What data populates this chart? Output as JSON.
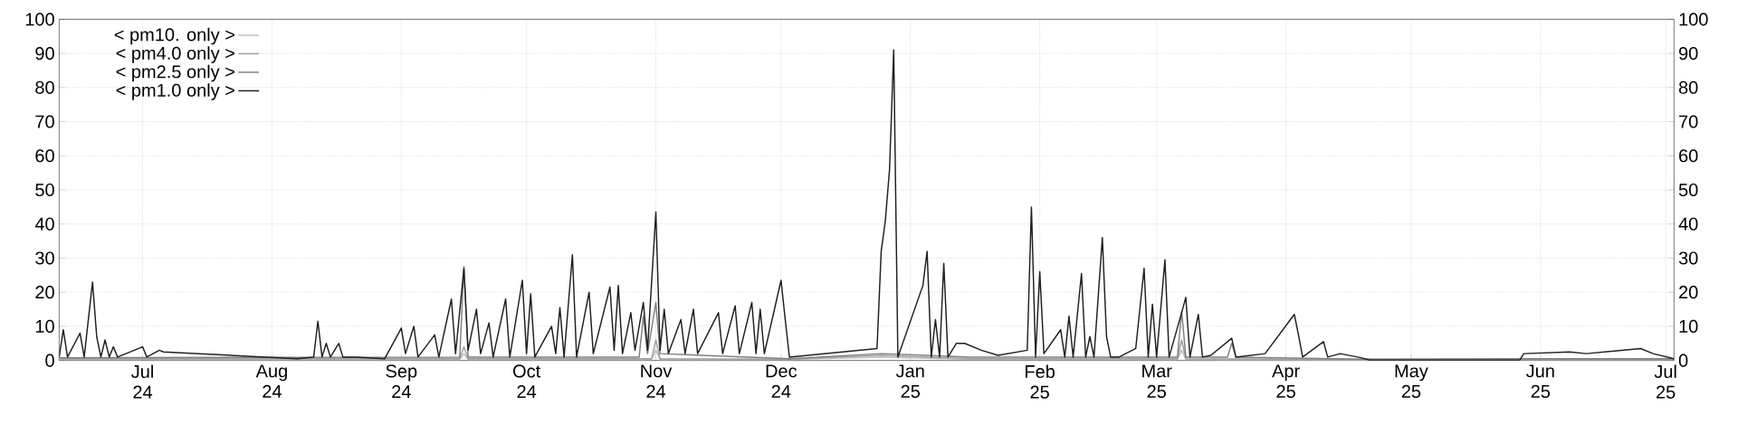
{
  "chart_data": {
    "type": "line",
    "xlim": [
      "2024-06-11",
      "2025-07-03"
    ],
    "xticks": [
      {
        "value": "2024-07-01",
        "label": "Jul 24"
      },
      {
        "value": "2024-08-01",
        "label": "Aug 24"
      },
      {
        "value": "2024-09-01",
        "label": "Sep 24"
      },
      {
        "value": "2024-10-01",
        "label": "Oct 24"
      },
      {
        "value": "2024-11-01",
        "label": "Nov 24"
      },
      {
        "value": "2024-12-01",
        "label": "Dec 24"
      },
      {
        "value": "2025-01-01",
        "label": "Jan 25"
      },
      {
        "value": "2025-02-01",
        "label": "Feb 25"
      },
      {
        "value": "2025-03-01",
        "label": "Mar 25"
      },
      {
        "value": "2025-04-01",
        "label": "Apr 25"
      },
      {
        "value": "2025-05-01",
        "label": "May 25"
      },
      {
        "value": "2025-06-01",
        "label": "Jun 25"
      },
      {
        "value": "2025-07-01",
        "label": "Jul 25"
      }
    ],
    "ylim": [
      0,
      100
    ],
    "yticks": [
      0,
      10,
      20,
      30,
      40,
      50,
      60,
      70,
      80,
      90,
      100
    ],
    "y2lim": [
      0,
      100
    ],
    "y2ticks": [
      0,
      10,
      20,
      30,
      40,
      50,
      60,
      70,
      80,
      90,
      100
    ],
    "grid": true,
    "legend": "top left",
    "series": [
      {
        "name": "< pm10. only >",
        "color": "#c0c0c0",
        "x": [
          "2024-06-11",
          "2024-09-15",
          "2024-09-16",
          "2024-09-17",
          "2024-10-31",
          "2024-11-01",
          "2024-11-02",
          "2024-12-03",
          "2024-12-25",
          "2025-01-15",
          "2025-03-06",
          "2025-03-07",
          "2025-03-08",
          "2025-04-19",
          "2025-05-28",
          "2025-07-03"
        ],
        "values": [
          0.3,
          0.3,
          2,
          0.3,
          0.3,
          3,
          0.3,
          0.3,
          1,
          0.3,
          0.3,
          3,
          0.3,
          0.2,
          0.3,
          0.3
        ]
      },
      {
        "name": "< pm4.0 only >",
        "color": "#a0a0a0",
        "x": [
          "2024-06-11",
          "2024-09-15",
          "2024-09-16",
          "2024-09-17",
          "2024-10-31",
          "2024-11-01",
          "2024-11-02",
          "2024-12-03",
          "2024-12-25",
          "2025-01-15",
          "2025-03-06",
          "2025-03-07",
          "2025-03-08",
          "2025-04-19",
          "2025-05-28",
          "2025-07-03"
        ],
        "values": [
          0.5,
          0.5,
          4,
          0.5,
          0.5,
          6,
          0.5,
          0.4,
          1.5,
          0.5,
          0.5,
          6,
          0.5,
          0.3,
          0.4,
          0.4
        ]
      },
      {
        "name": "< pm2.5 only >",
        "color": "#808080",
        "x": [
          "2024-06-11",
          "2024-09-15",
          "2024-09-16",
          "2024-09-17",
          "2024-10-28",
          "2024-10-29",
          "2024-10-30",
          "2024-11-01",
          "2024-11-02",
          "2024-12-03",
          "2024-12-25",
          "2025-01-15",
          "2025-03-06",
          "2025-03-07",
          "2025-03-08",
          "2025-03-18",
          "2025-03-19",
          "2025-03-20",
          "2025-04-19",
          "2025-05-28",
          "2025-07-03"
        ],
        "values": [
          0.8,
          1,
          27.5,
          1,
          1,
          13,
          2,
          17,
          2,
          0.5,
          2,
          1,
          1,
          14.5,
          1,
          1,
          5,
          1,
          0.4,
          0.5,
          0.5
        ]
      },
      {
        "name": "< pm1.0 only >",
        "color": "#202020",
        "x": [
          "2024-06-11",
          "2024-06-12",
          "2024-06-13",
          "2024-06-16",
          "2024-06-17",
          "2024-06-19",
          "2024-06-20",
          "2024-06-21",
          "2024-06-22",
          "2024-06-23",
          "2024-06-24",
          "2024-06-25",
          "2024-07-01",
          "2024-07-02",
          "2024-07-05",
          "2024-07-06",
          "2024-08-07",
          "2024-08-11",
          "2024-08-12",
          "2024-08-13",
          "2024-08-14",
          "2024-08-15",
          "2024-08-17",
          "2024-08-18",
          "2024-08-21",
          "2024-08-28",
          "2024-09-01",
          "2024-09-02",
          "2024-09-04",
          "2024-09-05",
          "2024-09-09",
          "2024-09-10",
          "2024-09-13",
          "2024-09-14",
          "2024-09-16",
          "2024-09-17",
          "2024-09-19",
          "2024-09-20",
          "2024-09-22",
          "2024-09-23",
          "2024-09-26",
          "2024-09-27",
          "2024-09-30",
          "2024-10-01",
          "2024-10-02",
          "2024-10-03",
          "2024-10-07",
          "2024-10-08",
          "2024-10-09",
          "2024-10-10",
          "2024-10-12",
          "2024-10-13",
          "2024-10-16",
          "2024-10-17",
          "2024-10-21",
          "2024-10-22",
          "2024-10-23",
          "2024-10-24",
          "2024-10-26",
          "2024-10-27",
          "2024-10-29",
          "2024-10-30",
          "2024-11-01",
          "2024-11-02",
          "2024-11-03",
          "2024-11-04",
          "2024-11-07",
          "2024-11-08",
          "2024-11-10",
          "2024-11-11",
          "2024-11-16",
          "2024-11-17",
          "2024-11-20",
          "2024-11-21",
          "2024-11-24",
          "2024-11-25",
          "2024-11-26",
          "2024-11-27",
          "2024-12-01",
          "2024-12-02",
          "2024-12-03",
          "2024-12-24",
          "2024-12-25",
          "2024-12-26",
          "2024-12-27",
          "2024-12-28",
          "2024-12-29",
          "2025-01-04",
          "2025-01-05",
          "2025-01-06",
          "2025-01-07",
          "2025-01-08",
          "2025-01-09",
          "2025-01-10",
          "2025-01-12",
          "2025-01-14",
          "2025-01-18",
          "2025-01-22",
          "2025-01-29",
          "2025-01-30",
          "2025-01-31",
          "2025-02-01",
          "2025-02-02",
          "2025-02-06",
          "2025-02-07",
          "2025-02-08",
          "2025-02-09",
          "2025-02-11",
          "2025-02-12",
          "2025-02-13",
          "2025-02-14",
          "2025-02-16",
          "2025-02-17",
          "2025-02-18",
          "2025-02-20",
          "2025-02-24",
          "2025-02-26",
          "2025-02-27",
          "2025-02-28",
          "2025-03-01",
          "2025-03-03",
          "2025-03-04",
          "2025-03-07",
          "2025-03-08",
          "2025-03-09",
          "2025-03-11",
          "2025-03-12",
          "2025-03-14",
          "2025-03-19",
          "2025-03-20",
          "2025-03-27",
          "2025-04-03",
          "2025-04-04",
          "2025-04-05",
          "2025-04-10",
          "2025-04-11",
          "2025-04-14",
          "2025-04-19",
          "2025-04-21",
          "2025-05-27",
          "2025-05-28",
          "2025-06-08",
          "2025-06-12",
          "2025-06-25",
          "2025-06-28",
          "2025-07-03"
        ],
        "values": [
          1,
          9,
          1,
          8,
          1,
          23,
          7,
          1,
          6,
          1,
          4,
          1,
          4,
          1,
          3,
          2.5,
          0.5,
          1,
          11.5,
          1,
          5,
          1,
          5,
          1,
          1,
          0.5,
          9.5,
          2,
          10,
          1,
          7.5,
          1,
          18,
          2,
          27,
          3,
          15,
          2,
          11,
          1,
          18,
          1,
          23.5,
          2,
          19.5,
          1,
          10,
          2,
          15.5,
          1,
          31,
          1,
          20,
          2,
          21.5,
          3,
          22,
          2,
          14,
          3,
          17,
          3,
          43.5,
          3,
          15,
          2,
          12,
          2,
          15,
          2,
          14,
          2,
          16,
          2,
          17,
          2,
          15,
          2,
          23.5,
          12,
          1,
          3.5,
          32,
          41,
          56,
          91,
          1,
          22,
          32,
          1,
          12,
          1,
          28.5,
          1,
          5,
          5,
          3,
          1.5,
          3,
          45,
          1,
          26,
          2,
          9,
          1,
          13,
          1,
          25.5,
          1,
          7,
          1,
          36,
          7,
          1,
          1,
          3.5,
          27,
          1,
          16.5,
          1,
          29.5,
          1,
          14,
          18.5,
          1,
          13.5,
          1,
          1.5,
          6.5,
          1,
          2,
          13.5,
          7.5,
          1,
          5.5,
          1,
          2,
          0.8,
          0.1,
          0.1,
          2,
          2.5,
          2,
          3.5,
          2,
          0.5
        ]
      }
    ]
  }
}
